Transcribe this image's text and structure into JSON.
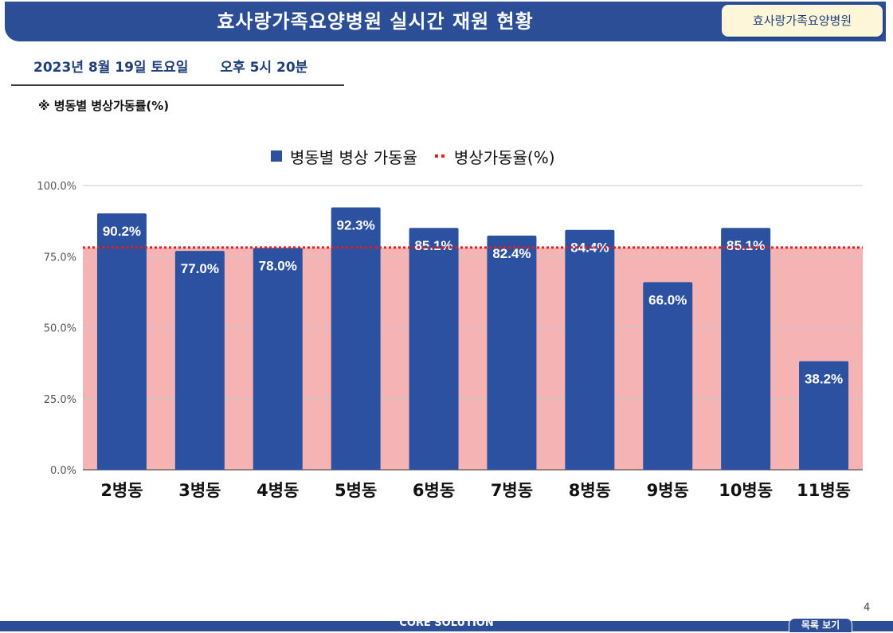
{
  "header": {
    "title": "효사랑가족요양병원 실시간 재원 현황",
    "tag": "효사랑가족요양병원"
  },
  "date": {
    "day": "2023년 8월 19일 토요일",
    "time": "오후 5시 20분"
  },
  "subtitle": "※ 병동별 병상가동률(%)",
  "colors": {
    "bar": "#2b51a0",
    "band": "#f6b3b3",
    "reference": "#e02020",
    "header": "#2b4e96"
  },
  "chart_data": {
    "type": "bar",
    "categories": [
      "2병동",
      "3병동",
      "4병동",
      "5병동",
      "6병동",
      "7병동",
      "8병동",
      "9병동",
      "10병동",
      "11병동"
    ],
    "series": [
      {
        "name": "병동별 병상 가동율",
        "values": [
          90.2,
          77.0,
          78.0,
          92.3,
          85.1,
          82.4,
          84.4,
          66.0,
          85.1,
          38.2
        ]
      }
    ],
    "data_labels": [
      "90.2%",
      "77.0%",
      "78.0%",
      "92.3%",
      "85.1%",
      "82.4%",
      "84.4%",
      "66.0%",
      "85.1%",
      "38.2%"
    ],
    "reference_line": {
      "name": "병상가동율(%)",
      "value": 78.2
    },
    "y_ticks": [
      "0.0%",
      "25.0%",
      "50.0%",
      "75.0%",
      "100.0%"
    ],
    "ylim": [
      0,
      100
    ],
    "legend_position": "top-center",
    "grid": true
  },
  "footer": {
    "text": "CORE SOLUTION",
    "page": "4",
    "list_button": "목록 보기"
  }
}
